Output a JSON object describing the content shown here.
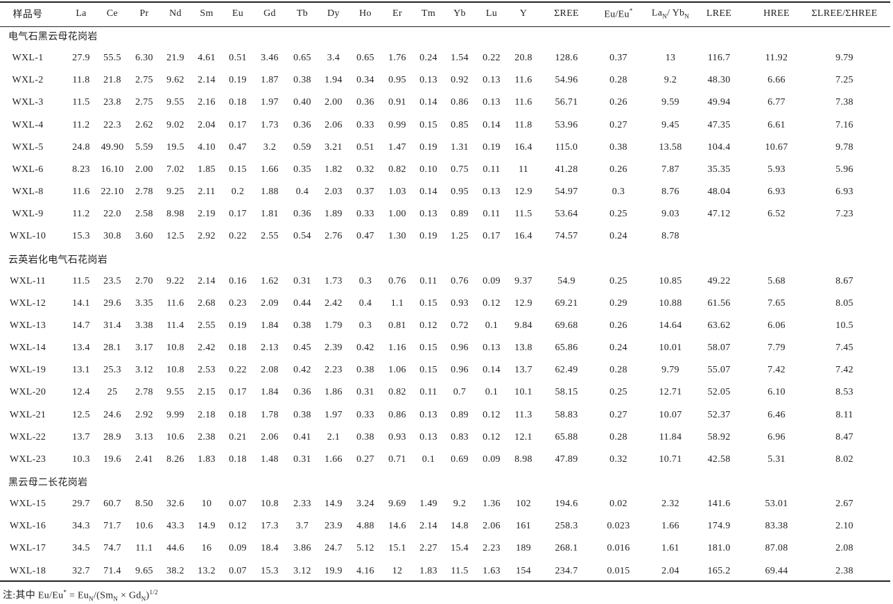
{
  "table": {
    "header": [
      "样品号",
      "La",
      "Ce",
      "Pr",
      "Nd",
      "Sm",
      "Eu",
      "Gd",
      "Tb",
      "Dy",
      "Ho",
      "Er",
      "Tm",
      "Yb",
      "Lu",
      "Y",
      "ΣREE",
      [
        {
          "text": "Eu/Eu"
        },
        {
          "sup": "*"
        }
      ],
      [
        {
          "text": "La"
        },
        {
          "sub": "N"
        },
        {
          "text": "/ Yb"
        },
        {
          "sub": "N"
        }
      ],
      "LREE",
      "HREE",
      "ΣLREE/ΣHREE"
    ],
    "groups": [
      {
        "label": "电气石黑云母花岗岩",
        "rows": [
          [
            "WXL-1",
            "27.9",
            "55.5",
            "6.30",
            "21.9",
            "4.61",
            "0.51",
            "3.46",
            "0.65",
            "3.4",
            "0.65",
            "1.76",
            "0.24",
            "1.54",
            "0.22",
            "20.8",
            "128.6",
            "0.37",
            "13",
            "116.7",
            "11.92",
            "9.79"
          ],
          [
            "WXL-2",
            "11.8",
            "21.8",
            "2.75",
            "9.62",
            "2.14",
            "0.19",
            "1.87",
            "0.38",
            "1.94",
            "0.34",
            "0.95",
            "0.13",
            "0.92",
            "0.13",
            "11.6",
            "54.96",
            "0.28",
            "9.2",
            "48.30",
            "6.66",
            "7.25"
          ],
          [
            "WXL-3",
            "11.5",
            "23.8",
            "2.75",
            "9.55",
            "2.16",
            "0.18",
            "1.97",
            "0.40",
            "2.00",
            "0.36",
            "0.91",
            "0.14",
            "0.86",
            "0.13",
            "11.6",
            "56.71",
            "0.26",
            "9.59",
            "49.94",
            "6.77",
            "7.38"
          ],
          [
            "WXL-4",
            "11.2",
            "22.3",
            "2.62",
            "9.02",
            "2.04",
            "0.17",
            "1.73",
            "0.36",
            "2.06",
            "0.33",
            "0.99",
            "0.15",
            "0.85",
            "0.14",
            "11.8",
            "53.96",
            "0.27",
            "9.45",
            "47.35",
            "6.61",
            "7.16"
          ],
          [
            "WXL-5",
            "24.8",
            "49.90",
            "5.59",
            "19.5",
            "4.10",
            "0.47",
            "3.2",
            "0.59",
            "3.21",
            "0.51",
            "1.47",
            "0.19",
            "1.31",
            "0.19",
            "16.4",
            "115.0",
            "0.38",
            "13.58",
            "104.4",
            "10.67",
            "9.78"
          ],
          [
            "WXL-6",
            "8.23",
            "16.10",
            "2.00",
            "7.02",
            "1.85",
            "0.15",
            "1.66",
            "0.35",
            "1.82",
            "0.32",
            "0.82",
            "0.10",
            "0.75",
            "0.11",
            "11",
            "41.28",
            "0.26",
            "7.87",
            "35.35",
            "5.93",
            "5.96"
          ],
          [
            "WXL-8",
            "11.6",
            "22.10",
            "2.78",
            "9.25",
            "2.11",
            "0.2",
            "1.88",
            "0.4",
            "2.03",
            "0.37",
            "1.03",
            "0.14",
            "0.95",
            "0.13",
            "12.9",
            "54.97",
            "0.3",
            "8.76",
            "48.04",
            "6.93",
            "6.93"
          ],
          [
            "WXL-9",
            "11.2",
            "22.0",
            "2.58",
            "8.98",
            "2.19",
            "0.17",
            "1.81",
            "0.36",
            "1.89",
            "0.33",
            "1.00",
            "0.13",
            "0.89",
            "0.11",
            "11.5",
            "53.64",
            "0.25",
            "9.03",
            "47.12",
            "6.52",
            "7.23"
          ],
          [
            "WXL-10",
            "15.3",
            "30.8",
            "3.60",
            "12.5",
            "2.92",
            "0.22",
            "2.55",
            "0.54",
            "2.76",
            "0.47",
            "1.30",
            "0.19",
            "1.25",
            "0.17",
            "16.4",
            "74.57",
            "0.24",
            "8.78",
            null,
            null,
            null
          ]
        ]
      },
      {
        "label": "云英岩化电气石花岗岩",
        "rows": [
          [
            "WXL-11",
            "11.5",
            "23.5",
            "2.70",
            "9.22",
            "2.14",
            "0.16",
            "1.62",
            "0.31",
            "1.73",
            "0.3",
            "0.76",
            "0.11",
            "0.76",
            "0.09",
            "9.37",
            "54.9",
            "0.25",
            "10.85",
            "49.22",
            "5.68",
            "8.67"
          ],
          [
            "WXL-12",
            "14.1",
            "29.6",
            "3.35",
            "11.6",
            "2.68",
            "0.23",
            "2.09",
            "0.44",
            "2.42",
            "0.4",
            "1.1",
            "0.15",
            "0.93",
            "0.12",
            "12.9",
            "69.21",
            "0.29",
            "10.88",
            "61.56",
            "7.65",
            "8.05"
          ],
          [
            "WXL-13",
            "14.7",
            "31.4",
            "3.38",
            "11.4",
            "2.55",
            "0.19",
            "1.84",
            "0.38",
            "1.79",
            "0.3",
            "0.81",
            "0.12",
            "0.72",
            "0.1",
            "9.84",
            "69.68",
            "0.26",
            "14.64",
            "63.62",
            "6.06",
            "10.5"
          ],
          [
            "WXL-14",
            "13.4",
            "28.1",
            "3.17",
            "10.8",
            "2.42",
            "0.18",
            "2.13",
            "0.45",
            "2.39",
            "0.42",
            "1.16",
            "0.15",
            "0.96",
            "0.13",
            "13.8",
            "65.86",
            "0.24",
            "10.01",
            "58.07",
            "7.79",
            "7.45"
          ],
          [
            "WXL-19",
            "13.1",
            "25.3",
            "3.12",
            "10.8",
            "2.53",
            "0.22",
            "2.08",
            "0.42",
            "2.23",
            "0.38",
            "1.06",
            "0.15",
            "0.96",
            "0.14",
            "13.7",
            "62.49",
            "0.28",
            "9.79",
            "55.07",
            "7.42",
            "7.42"
          ],
          [
            "WXL-20",
            "12.4",
            "25",
            "2.78",
            "9.55",
            "2.15",
            "0.17",
            "1.84",
            "0.36",
            "1.86",
            "0.31",
            "0.82",
            "0.11",
            "0.7",
            "0.1",
            "10.1",
            "58.15",
            "0.25",
            "12.71",
            "52.05",
            "6.10",
            "8.53"
          ],
          [
            "WXL-21",
            "12.5",
            "24.6",
            "2.92",
            "9.99",
            "2.18",
            "0.18",
            "1.78",
            "0.38",
            "1.97",
            "0.33",
            "0.86",
            "0.13",
            "0.89",
            "0.12",
            "11.3",
            "58.83",
            "0.27",
            "10.07",
            "52.37",
            "6.46",
            "8.11"
          ],
          [
            "WXL-22",
            "13.7",
            "28.9",
            "3.13",
            "10.6",
            "2.38",
            "0.21",
            "2.06",
            "0.41",
            "2.1",
            "0.38",
            "0.93",
            "0.13",
            "0.83",
            "0.12",
            "12.1",
            "65.88",
            "0.28",
            "11.84",
            "58.92",
            "6.96",
            "8.47"
          ],
          [
            "WXL-23",
            "10.3",
            "19.6",
            "2.41",
            "8.26",
            "1.83",
            "0.18",
            "1.48",
            "0.31",
            "1.66",
            "0.27",
            "0.71",
            "0.1",
            "0.69",
            "0.09",
            "8.98",
            "47.89",
            "0.32",
            "10.71",
            "42.58",
            "5.31",
            "8.02"
          ]
        ]
      },
      {
        "label": "黑云母二长花岗岩",
        "rows": [
          [
            "WXL-15",
            "29.7",
            "60.7",
            "8.50",
            "32.6",
            "10",
            "0.07",
            "10.8",
            "2.33",
            "14.9",
            "3.24",
            "9.69",
            "1.49",
            "9.2",
            "1.36",
            "102",
            "194.6",
            "0.02",
            "2.32",
            "141.6",
            "53.01",
            "2.67"
          ],
          [
            "WXL-16",
            "34.3",
            "71.7",
            "10.6",
            "43.3",
            "14.9",
            "0.12",
            "17.3",
            "3.7",
            "23.9",
            "4.88",
            "14.6",
            "2.14",
            "14.8",
            "2.06",
            "161",
            "258.3",
            "0.023",
            "1.66",
            "174.9",
            "83.38",
            "2.10"
          ],
          [
            "WXL-17",
            "34.5",
            "74.7",
            "11.1",
            "44.6",
            "16",
            "0.09",
            "18.4",
            "3.86",
            "24.7",
            "5.12",
            "15.1",
            "2.27",
            "15.4",
            "2.23",
            "189",
            "268.1",
            "0.016",
            "1.61",
            "181.0",
            "87.08",
            "2.08"
          ],
          [
            "WXL-18",
            "32.7",
            "71.4",
            "9.65",
            "38.2",
            "13.2",
            "0.07",
            "15.3",
            "3.12",
            "19.9",
            "4.16",
            "12",
            "1.83",
            "11.5",
            "1.63",
            "154",
            "234.7",
            "0.015",
            "2.04",
            "165.2",
            "69.44",
            "2.38"
          ]
        ]
      }
    ],
    "note": [
      {
        "text": "注:其中 Eu/Eu"
      },
      {
        "sup": "*"
      },
      {
        "text": " = Eu"
      },
      {
        "sub": "N"
      },
      {
        "text": "/(Sm"
      },
      {
        "sub": "N"
      },
      {
        "text": " × Gd"
      },
      {
        "sub": "N"
      },
      {
        "text": ")"
      },
      {
        "sup": "1/2"
      }
    ]
  }
}
